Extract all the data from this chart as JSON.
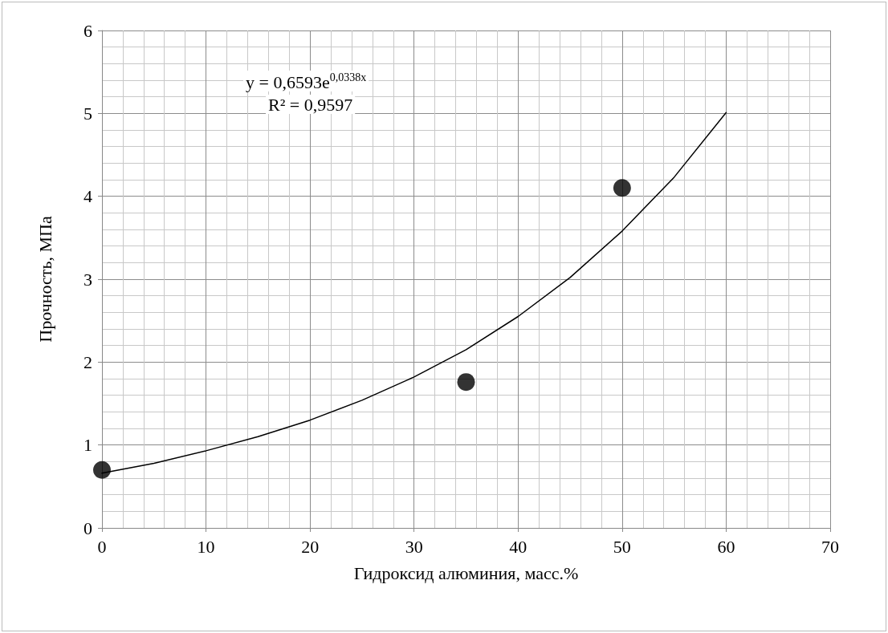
{
  "chart_data": {
    "type": "scatter",
    "xlabel": "Гидроксид алюминия, масс.%",
    "ylabel": "Прочность, МПа",
    "xlim": [
      0,
      70
    ],
    "xticks": [
      0,
      10,
      20,
      30,
      40,
      50,
      60,
      70
    ],
    "ylim": [
      0,
      6
    ],
    "yticks": [
      0,
      1,
      2,
      3,
      4,
      5,
      6
    ],
    "grid": true,
    "marker": "circle",
    "annotations": [
      "y = 0,6593e$^{0,0338x}$",
      "R² = 0,9597"
    ],
    "series": [
      {
        "color": "#000000",
        "x": [
          0,
          35,
          50
        ],
        "values": [
          0.7,
          1.76,
          4.1
        ]
      },
      {
        "type": "line",
        "color": "#000000",
        "marker": "none",
        "line_style": "solid",
        "x": [
          0,
          5,
          10,
          15,
          20,
          25,
          30,
          35,
          40,
          45,
          50,
          55,
          60
        ],
        "values": [
          0.66,
          0.78,
          0.93,
          1.1,
          1.3,
          1.54,
          1.82,
          2.15,
          2.55,
          3.02,
          3.58,
          4.23,
          5.01
        ]
      }
    ]
  }
}
